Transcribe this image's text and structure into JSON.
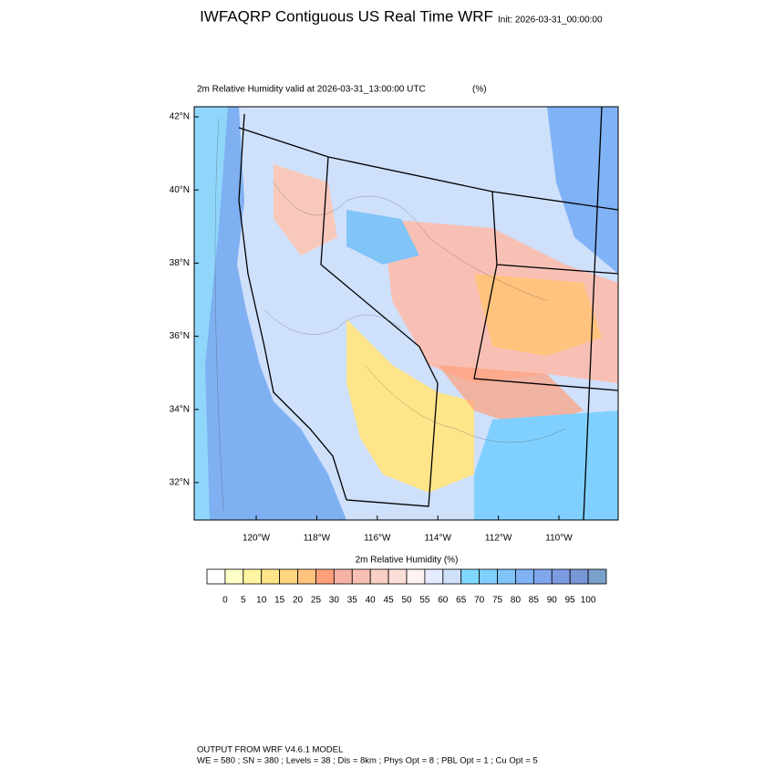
{
  "title": "IWFAQRP Contiguous US Real Time WRF",
  "init": "Init: 2026-03-31_00:00:00",
  "subtitle": "2m Relative Humidity valid at 2026-03-31_13:00:00 UTC",
  "units": "(%)",
  "map": {
    "lat_labels": [
      "42°N",
      "40°N",
      "38°N",
      "36°N",
      "34°N",
      "32°N"
    ],
    "lon_labels": [
      "120°W",
      "118°W",
      "116°W",
      "114°W",
      "112°W",
      "110°W"
    ]
  },
  "colorbar": {
    "title": "2m Relative Humidity  (%)",
    "labels": [
      "0",
      "5",
      "10",
      "15",
      "20",
      "25",
      "30",
      "35",
      "40",
      "45",
      "50",
      "55",
      "60",
      "65",
      "70",
      "75",
      "80",
      "85",
      "90",
      "95",
      "100"
    ],
    "colors": [
      "#ffffff",
      "#ffffc8",
      "#fff5a0",
      "#ffe58a",
      "#ffd680",
      "#ffc37e",
      "#ffa07a",
      "#f7b2a6",
      "#f8c0b4",
      "#fad0c4",
      "#fce0d8",
      "#fff2f2",
      "#e6ecff",
      "#cfe0fb",
      "#80d8ff",
      "#80d0ff",
      "#80c4f8",
      "#80b2f6",
      "#80a6ee",
      "#7c9ce2",
      "#7896d6",
      "#7aa0cc"
    ]
  },
  "footer": [
    "OUTPUT FROM WRF V4.6.1 MODEL",
    "WE = 580 ; SN = 380 ; Levels = 38 ; Dis = 8km ; Phys Opt = 8 ; PBL Opt = 1 ; Cu Opt = 5"
  ]
}
